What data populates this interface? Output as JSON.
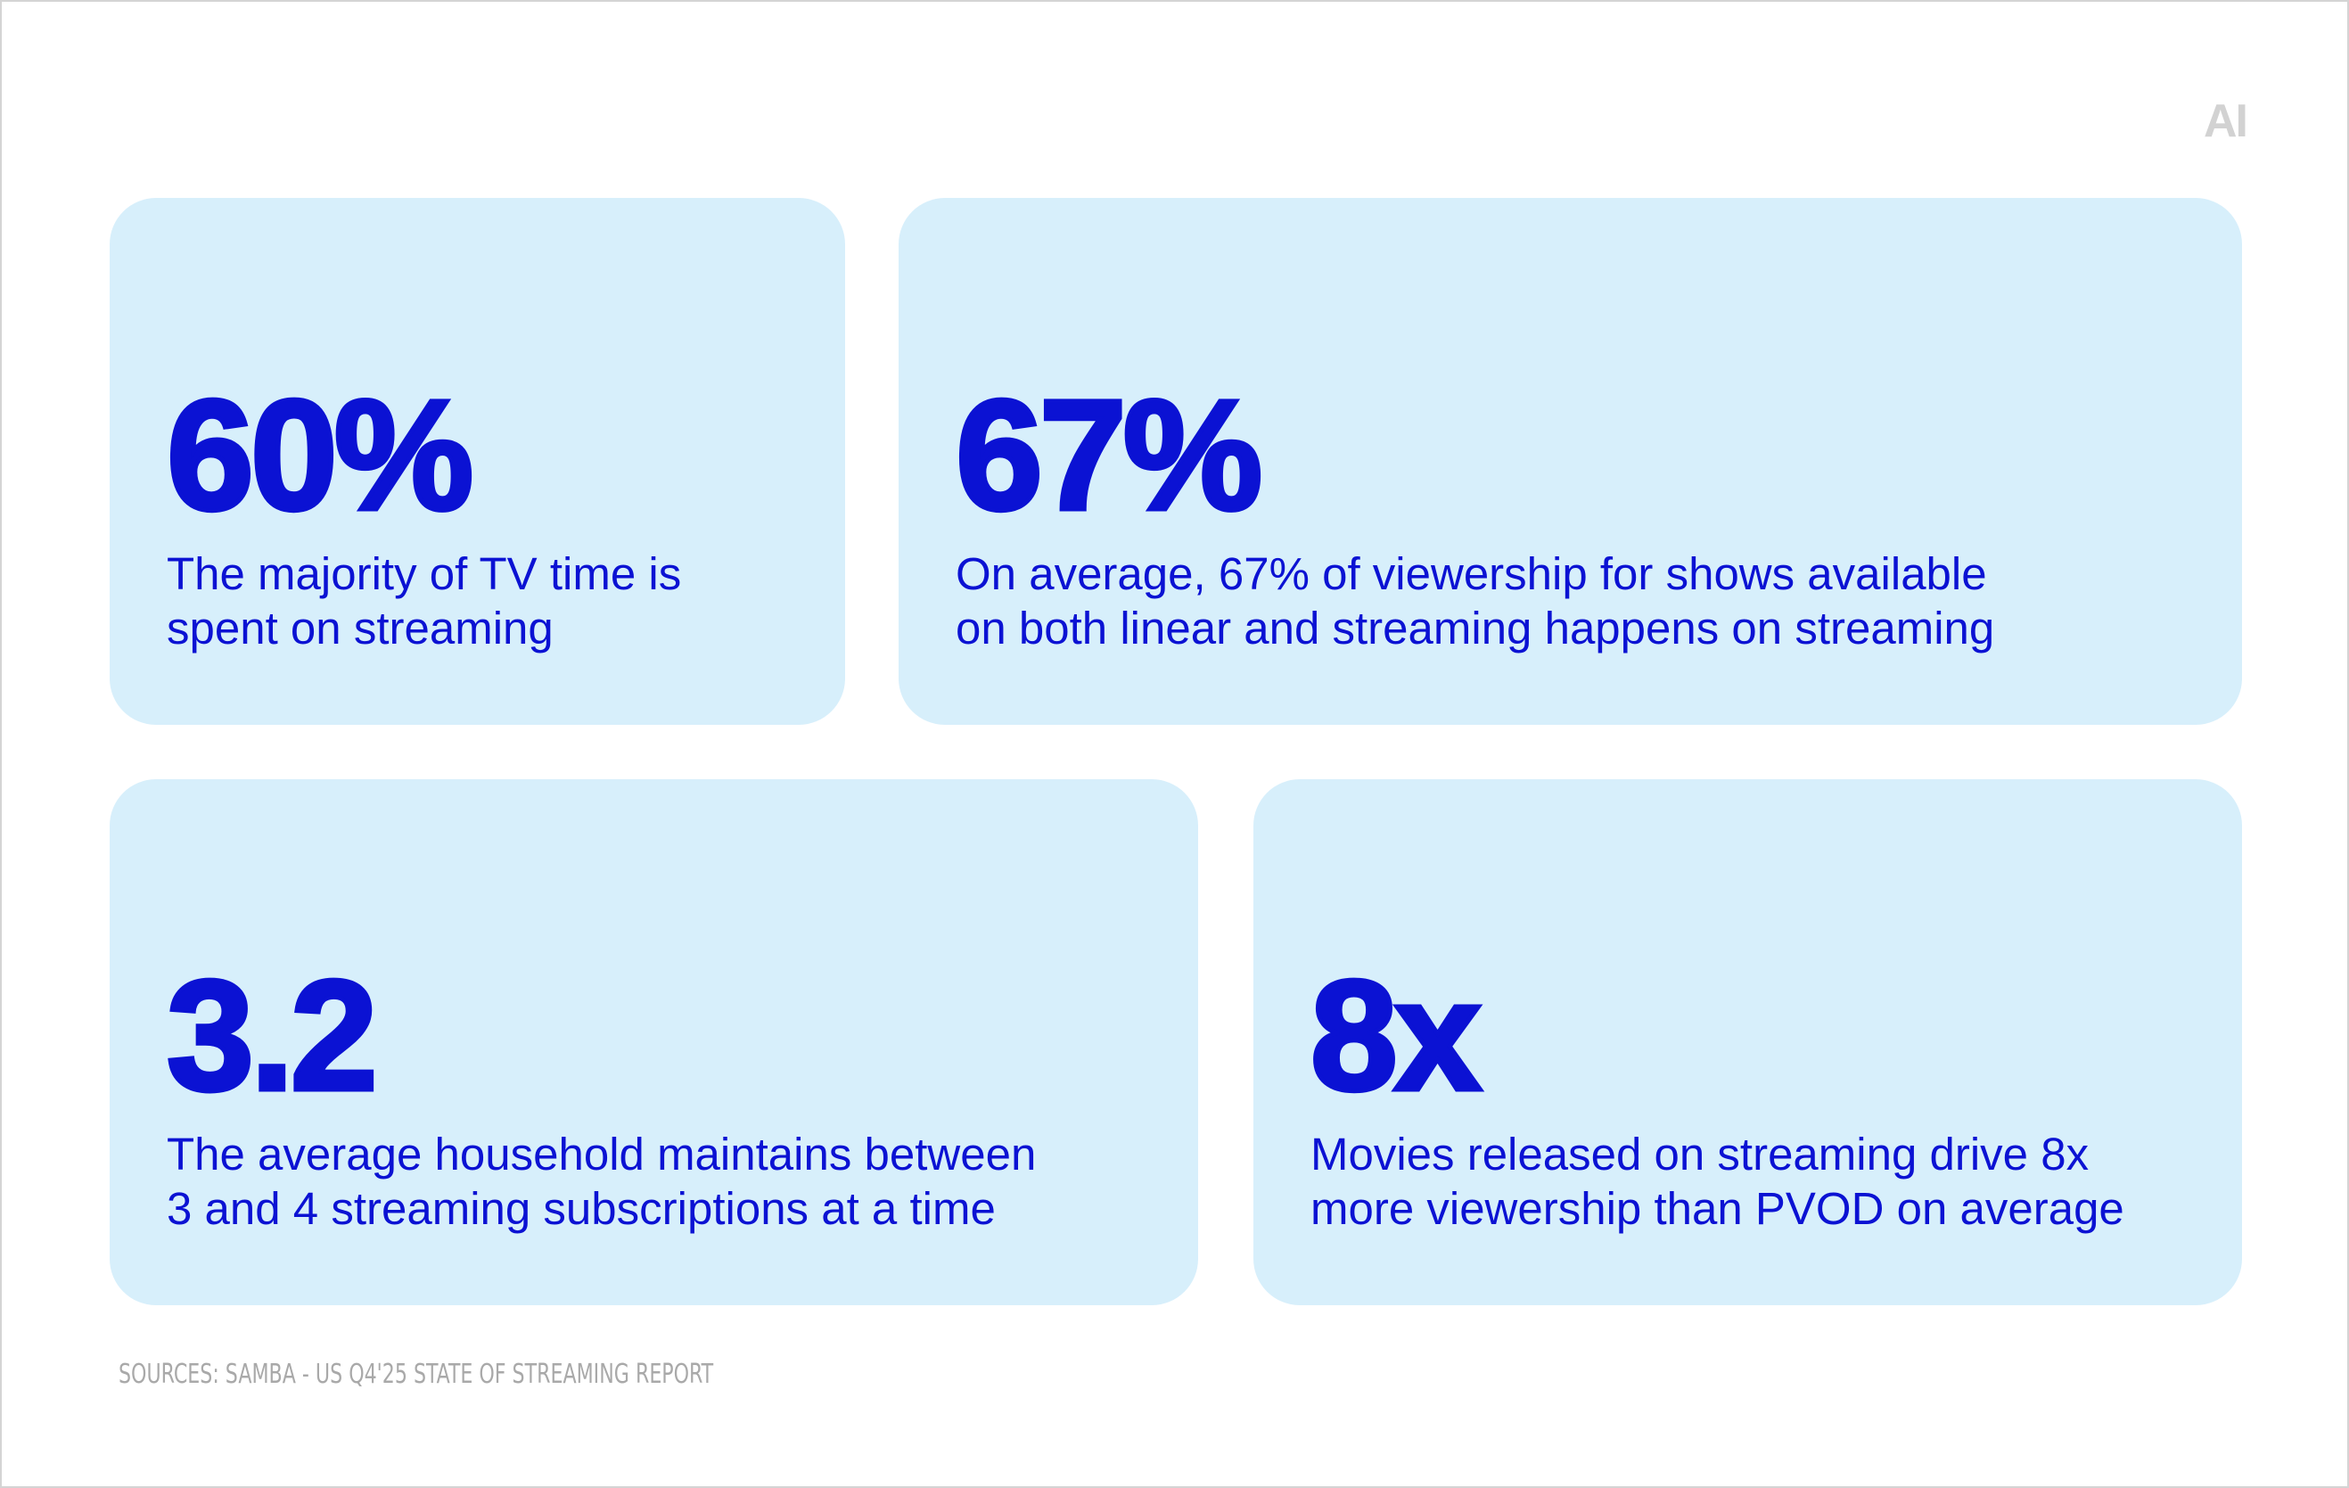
{
  "logo": "AI",
  "cards": [
    {
      "stat": "60%",
      "lines": [
        "The majority of TV time is",
        "spent on streaming"
      ]
    },
    {
      "stat": "67%",
      "lines": [
        "On average, 67% of viewership for shows available",
        "on both linear and streaming happens on streaming"
      ]
    },
    {
      "stat": "3.2",
      "lines": [
        "The average household maintains between",
        "3 and 4 streaming subscriptions at a time"
      ]
    },
    {
      "stat": "8x",
      "lines": [
        "Movies released on streaming drive 8x",
        "more viewership than PVOD on average"
      ]
    }
  ],
  "sources": "SOURCES: SAMBA - US Q4'25 STATE OF STREAMING REPORT"
}
